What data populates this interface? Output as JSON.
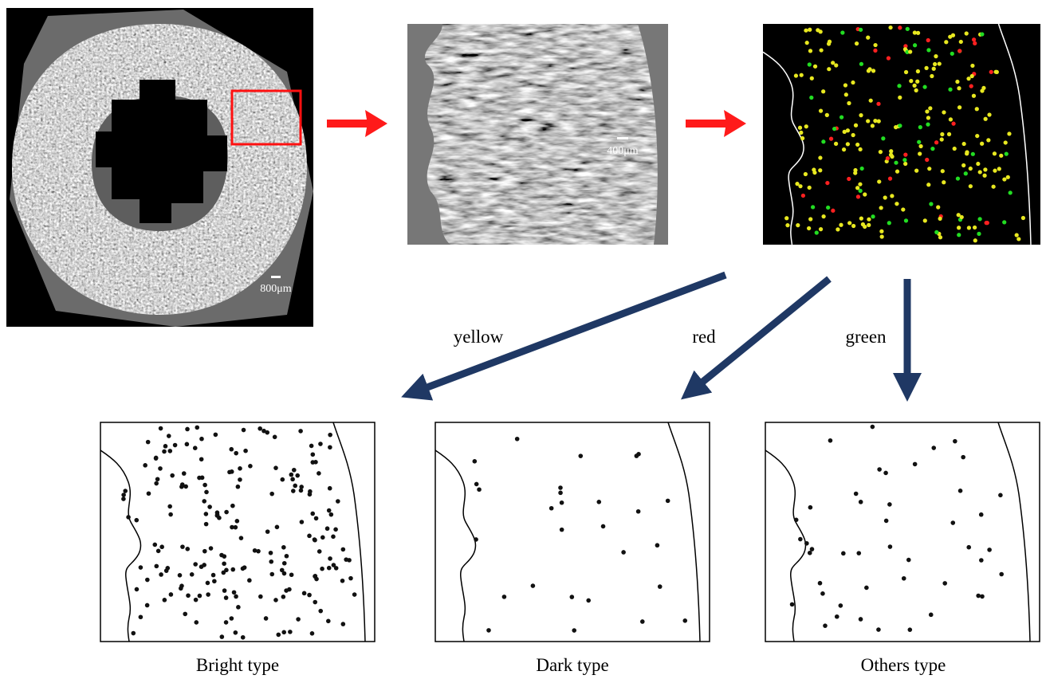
{
  "top_row": {
    "panel_1_scale": "800μm",
    "panel_2_scale": "400μm"
  },
  "arrows": {
    "labels": [
      "yellow",
      "red",
      "green"
    ]
  },
  "bottom_row": {
    "captions": [
      "Bright type",
      "Dark type",
      "Others type"
    ]
  }
}
